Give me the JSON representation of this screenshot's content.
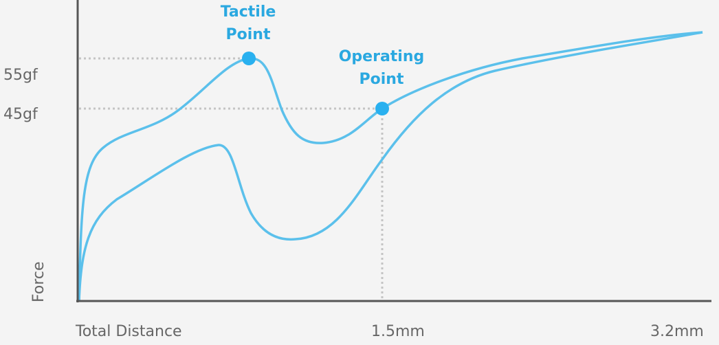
{
  "callouts": {
    "tactile_point": [
      "Tactile",
      "Point"
    ],
    "operating_point": [
      "Operating",
      "Point"
    ]
  },
  "y_axis": {
    "title": "Force",
    "levels": [
      "55gf",
      "45gf"
    ]
  },
  "x_axis": {
    "title": "Total Distance",
    "marks": [
      "1.5mm",
      "3.2mm"
    ]
  }
}
